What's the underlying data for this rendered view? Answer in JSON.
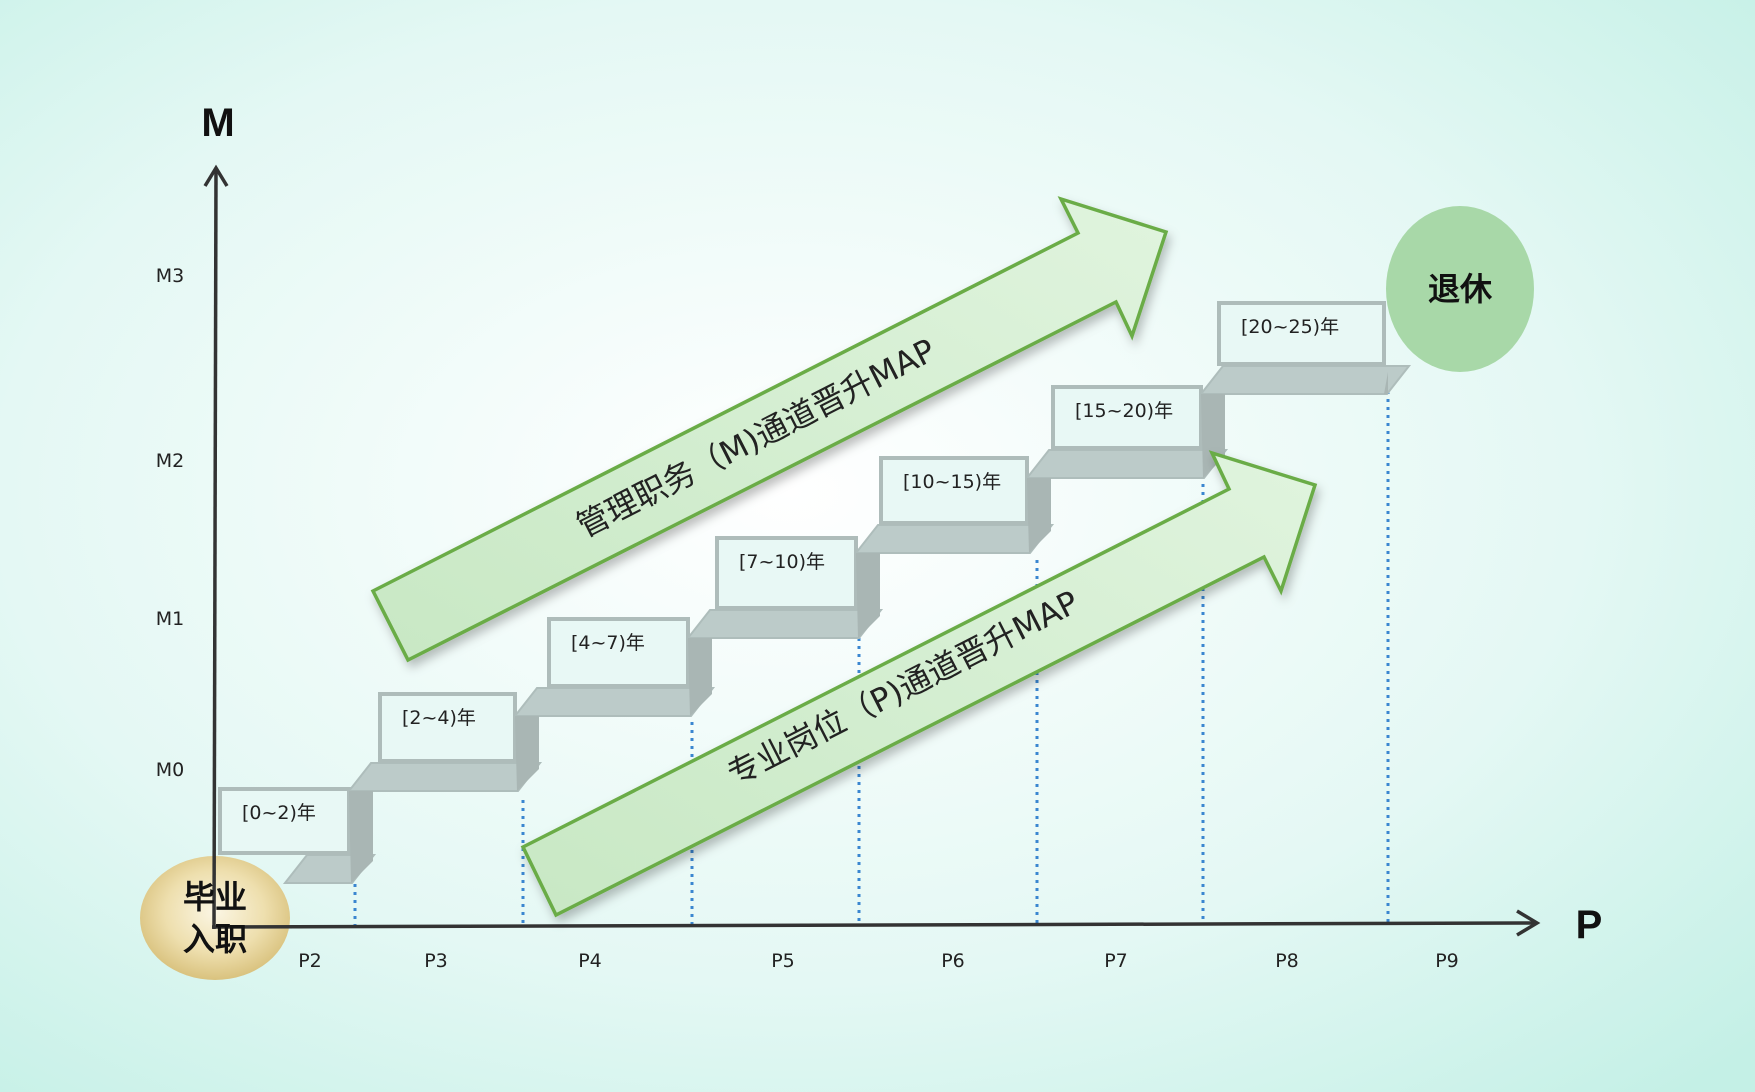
{
  "axes": {
    "y_title": "M",
    "x_title": "P",
    "m_levels": [
      "M0",
      "M1",
      "M2",
      "M3"
    ],
    "p_levels": [
      "P2",
      "P3",
      "P4",
      "P5",
      "P6",
      "P7",
      "P8",
      "P9"
    ]
  },
  "stages": [
    "[0~2)年",
    "[2~4)年",
    "[4~7)年",
    "[7~10)年",
    "[10~15)年",
    "[15~20)年",
    "[20~25)年"
  ],
  "arrows": {
    "management": "管理职务（M)通道晋升MAP",
    "professional": "专业岗位（P)通道晋升MAP"
  },
  "start": {
    "line1": "毕业",
    "line2": "入职"
  },
  "end": "退休",
  "colors": {
    "arrow_fill": "#d2ecd0",
    "arrow_stroke": "#6aac46",
    "end_circle": "#a8d8a8",
    "start_circle": "#e3cf8c",
    "step": "#b8c8c6",
    "guide_line": "#3a86d0"
  }
}
